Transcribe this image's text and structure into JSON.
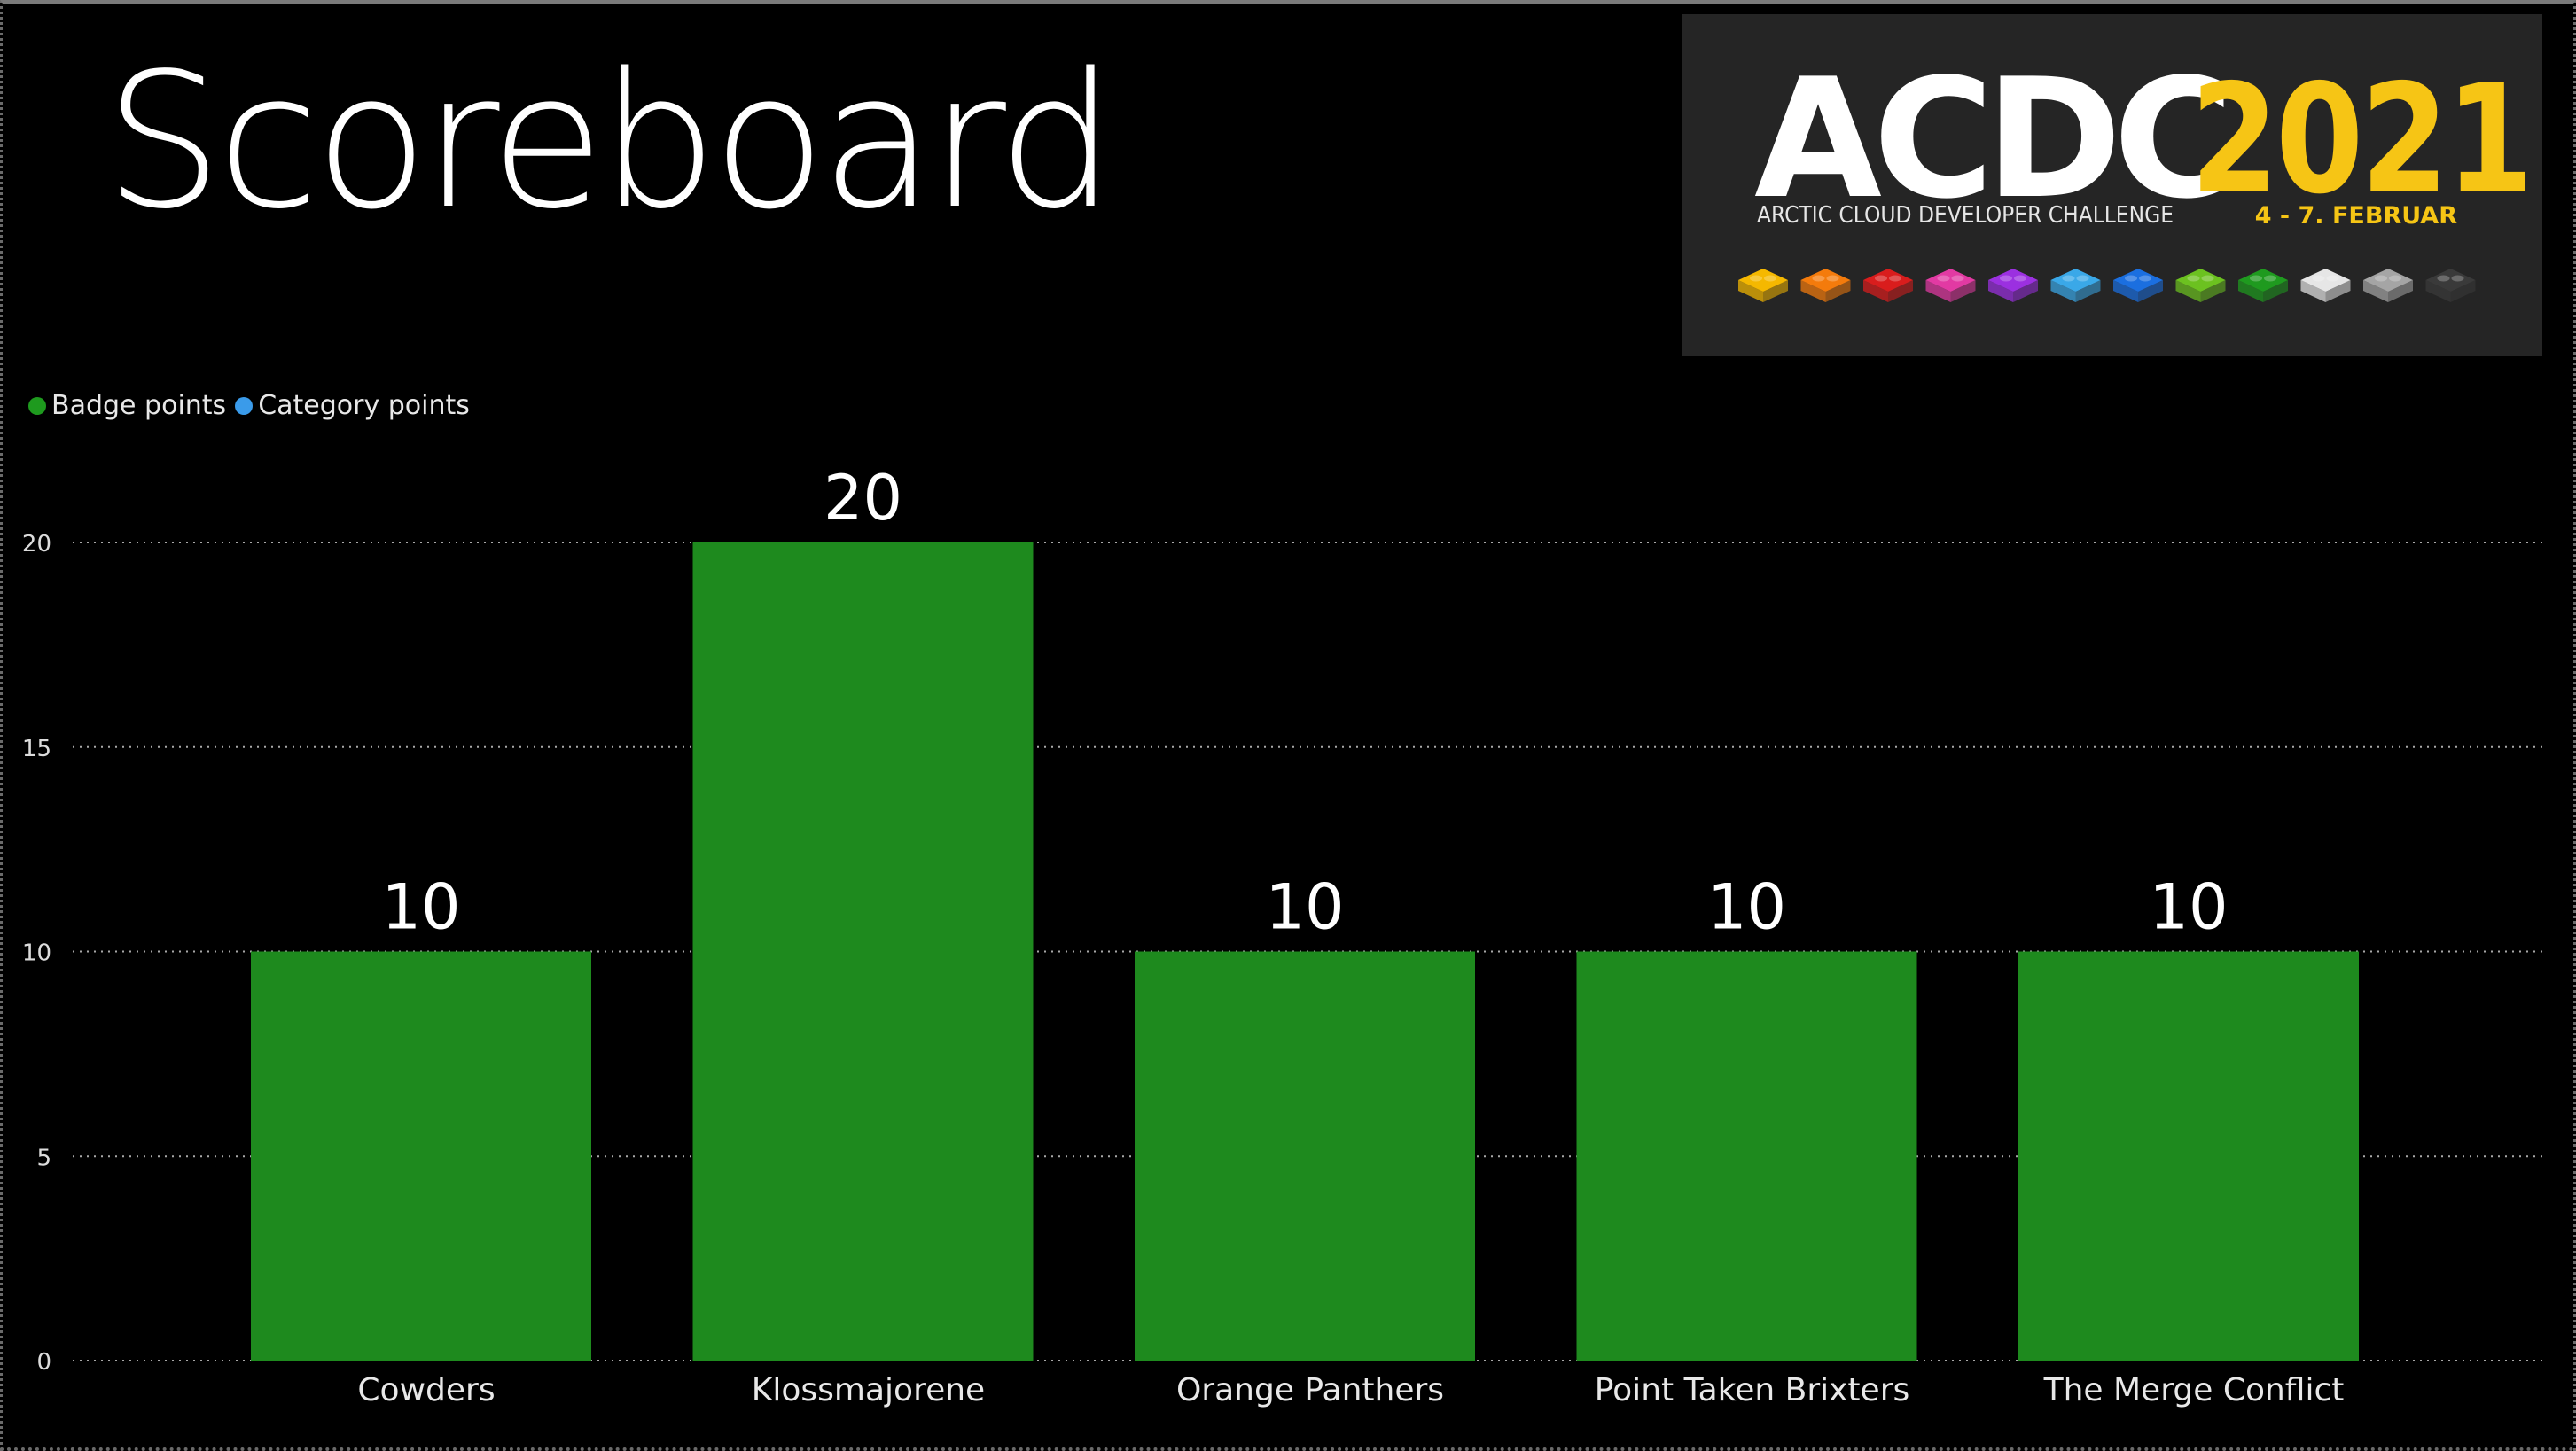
{
  "page": {
    "title": "Scoreboard"
  },
  "logo": {
    "name": "ACDC",
    "year": "2021",
    "subtitle": "ARCTIC CLOUD DEVELOPER CHALLENGE",
    "dates": "4 - 7. FEBRUAR",
    "brick_colors": [
      "#f5b800",
      "#f47b0c",
      "#d91d1d",
      "#e23aa3",
      "#9b30e0",
      "#3aa8e8",
      "#1b6fe0",
      "#6cc120",
      "#1f9a1f",
      "#e6e6e6",
      "#a5a5a5",
      "#3a3a3a"
    ]
  },
  "legend": [
    {
      "label": "Badge points",
      "color": "#1e9a1e"
    },
    {
      "label": "Category points",
      "color": "#3a9bea"
    }
  ],
  "chart_data": {
    "type": "bar",
    "categories": [
      "Cowders",
      "Klossmajorene",
      "Orange Panthers",
      "Point Taken Brixters",
      "The Merge Conflict"
    ],
    "series": [
      {
        "name": "Badge points",
        "values": [
          10,
          20,
          10,
          10,
          10
        ],
        "color": "#1e8a1e"
      },
      {
        "name": "Category points",
        "values": [
          0,
          0,
          0,
          0,
          0
        ],
        "color": "#3a9bea"
      }
    ],
    "data_labels": [
      "10",
      "20",
      "10",
      "10",
      "10"
    ],
    "yticks": [
      0,
      5,
      10,
      15,
      20
    ],
    "ylim": [
      0,
      20
    ],
    "grid": true,
    "legend_position": "top-left"
  }
}
